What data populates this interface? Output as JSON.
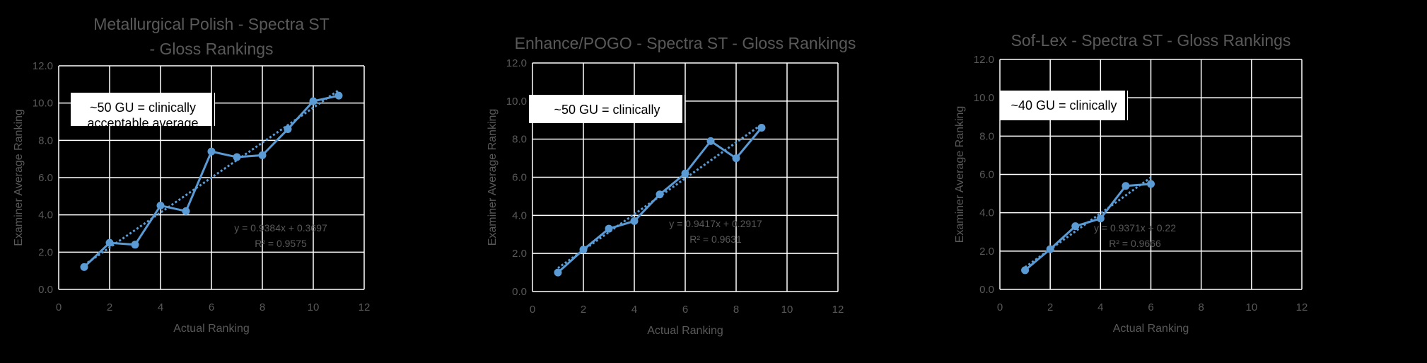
{
  "colors": {
    "background": "#000000",
    "series": "#5b9bd5",
    "text": "#595959",
    "grid": "#ffffff"
  },
  "chart_data": [
    {
      "type": "scatter",
      "title": [
        "Metallurgical Polish - Spectra ST",
        "- Gloss Rankings"
      ],
      "xlabel": "Actual Ranking",
      "ylabel": "Examiner Average Ranking",
      "xlim": [
        0,
        12
      ],
      "ylim": [
        0,
        12
      ],
      "xticks": [
        "0",
        "2",
        "4",
        "6",
        "8",
        "10",
        "12"
      ],
      "yticks": [
        "0.0",
        "2.0",
        "4.0",
        "6.0",
        "8.0",
        "10.0",
        "12.0"
      ],
      "grid": true,
      "lines_with_markers": true,
      "x": [
        1,
        2,
        3,
        4,
        5,
        6,
        7,
        8,
        9,
        10,
        11
      ],
      "y": [
        1.2,
        2.5,
        2.4,
        4.5,
        4.2,
        7.4,
        7.1,
        7.2,
        8.6,
        10.1,
        10.4
      ],
      "trendline": {
        "type": "linear",
        "style": "dotted",
        "slope": 0.9384,
        "intercept": 0.3697,
        "equation": "y = 0.9384x + 0.3697",
        "r2": "R² = 0.9575"
      },
      "annotation": [
        "~50 GU = clinically",
        "acceptable average"
      ]
    },
    {
      "type": "scatter",
      "title": [
        "Enhance/POGO - Spectra ST - Gloss Rankings"
      ],
      "xlabel": "Actual Ranking",
      "ylabel": "Examiner Average Ranking",
      "xlim": [
        0,
        12
      ],
      "ylim": [
        0,
        12
      ],
      "xticks": [
        "0",
        "2",
        "4",
        "6",
        "8",
        "10",
        "12"
      ],
      "yticks": [
        "0.0",
        "2.0",
        "4.0",
        "6.0",
        "8.0",
        "10.0",
        "12.0"
      ],
      "grid": true,
      "lines_with_markers": true,
      "x": [
        1,
        2,
        3,
        4,
        5,
        6,
        7,
        8,
        9
      ],
      "y": [
        1.0,
        2.2,
        3.3,
        3.7,
        5.1,
        6.2,
        7.9,
        7.0,
        8.6
      ],
      "trendline": {
        "type": "linear",
        "style": "dotted",
        "slope": 0.9417,
        "intercept": 0.2917,
        "equation": "y = 0.9417x + 0.2917",
        "r2": "R² = 0.9631"
      },
      "annotation": [
        "~50 GU = clinically"
      ]
    },
    {
      "type": "scatter",
      "title": [
        "Sof-Lex - Spectra ST - Gloss Rankings"
      ],
      "xlabel": "Actual Ranking",
      "ylabel": "Examiner Average Ranking",
      "xlim": [
        0,
        12
      ],
      "ylim": [
        0,
        12
      ],
      "xticks": [
        "0",
        "2",
        "4",
        "6",
        "8",
        "10",
        "12"
      ],
      "yticks": [
        "0.0",
        "2.0",
        "4.0",
        "6.0",
        "8.0",
        "10.0",
        "12.0"
      ],
      "grid": true,
      "lines_with_markers": true,
      "x": [
        1,
        2,
        3,
        4,
        5,
        6
      ],
      "y": [
        1.0,
        2.1,
        3.3,
        3.7,
        5.4,
        5.5
      ],
      "trendline": {
        "type": "linear",
        "style": "dotted",
        "slope": 0.9371,
        "intercept": 0.22,
        "equation": "y = 0.9371x + 0.22",
        "r2": "R² = 0.9666"
      },
      "annotation": [
        "~40 GU = clinically"
      ]
    }
  ]
}
